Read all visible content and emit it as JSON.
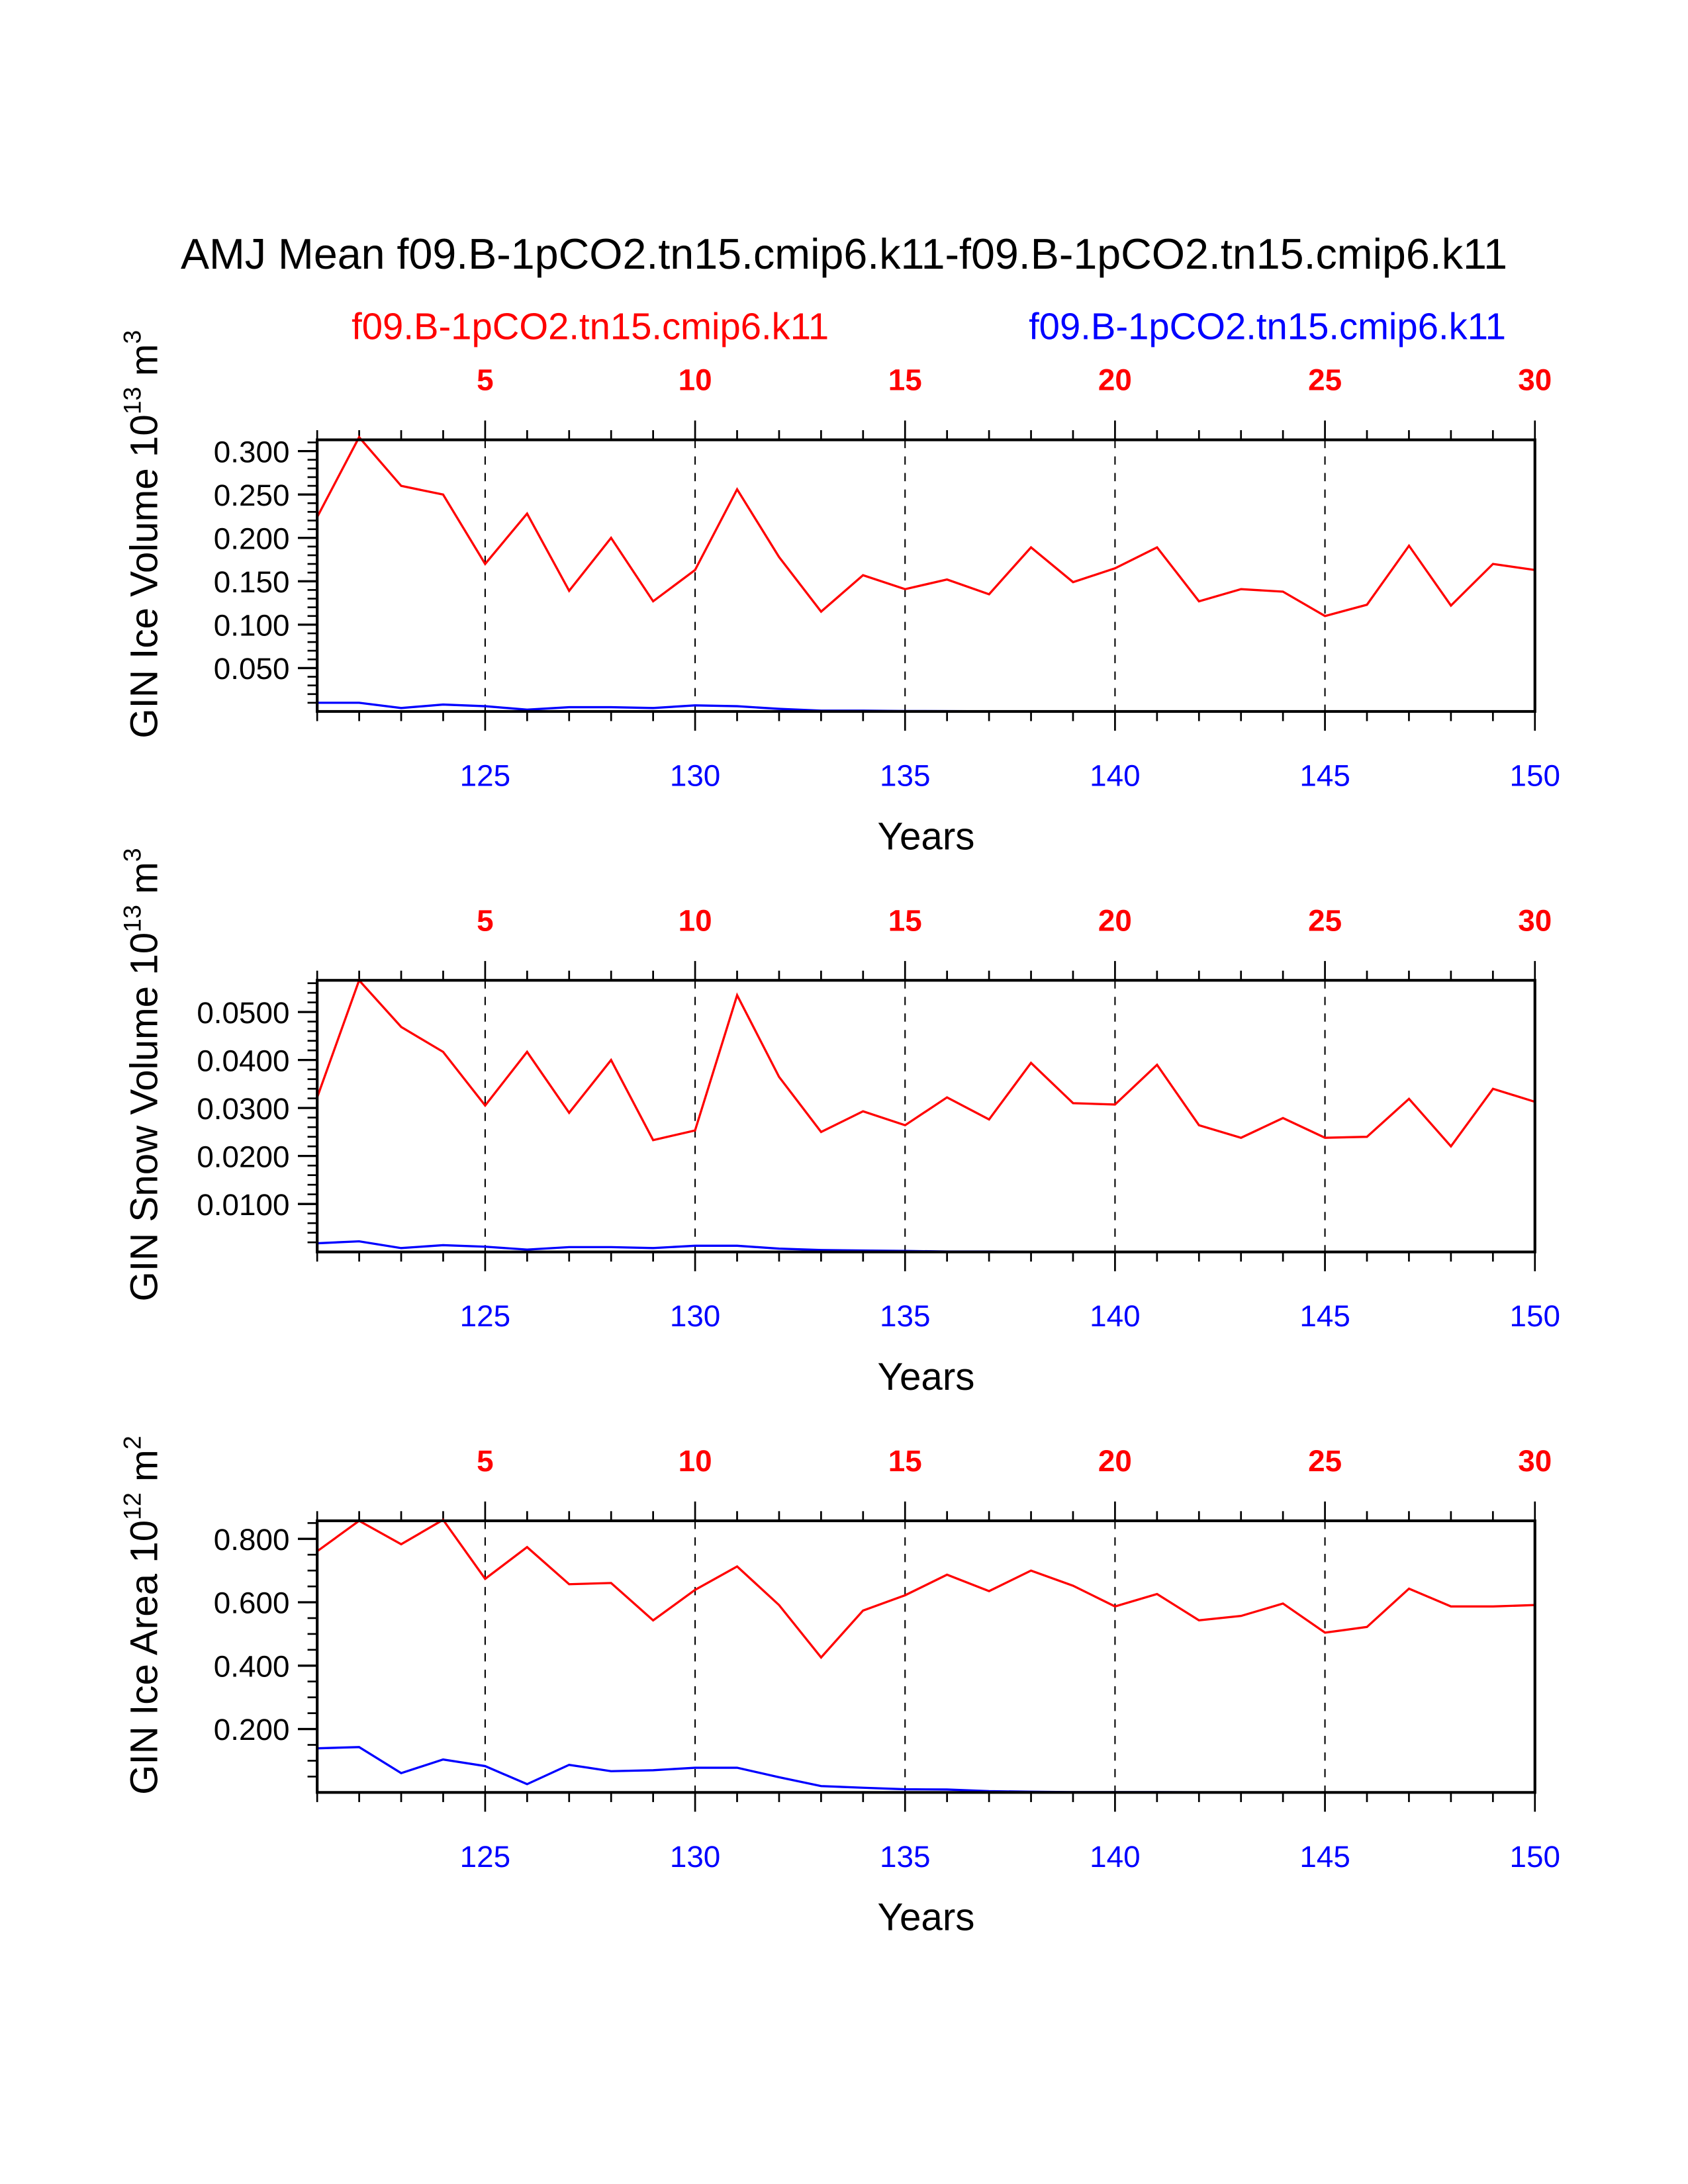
{
  "title": "AMJ Mean f09.B-1pCO2.tn15.cmip6.k11-f09.B-1pCO2.tn15.cmip6.k11",
  "legend": {
    "red_label": "f09.B-1pCO2.tn15.cmip6.k11",
    "blue_label": "f09.B-1pCO2.tn15.cmip6.k11"
  },
  "colors": {
    "red": "#ff0000",
    "blue": "#0000ff",
    "axis": "#000000"
  },
  "chart_data": [
    {
      "type": "line",
      "ylabel": {
        "main": "GIN Ice Volume 10",
        "exp": "13",
        "unit": " m",
        "unit_exp": "3"
      },
      "xlabel": "Years",
      "ylim": [
        0,
        0.313
      ],
      "yticks": [
        0.05,
        0.1,
        0.15,
        0.2,
        0.25,
        0.3
      ],
      "ytick_labels": [
        "0.050",
        "0.100",
        "0.150",
        "0.200",
        "0.250",
        "0.300"
      ],
      "yminor": 0.01,
      "top_ticks": [
        "5",
        "10",
        "15",
        "20",
        "25",
        "30"
      ],
      "bottom_ticks": [
        "125",
        "130",
        "135",
        "140",
        "145",
        "150"
      ],
      "x": [
        121,
        122,
        123,
        124,
        125,
        126,
        127,
        128,
        129,
        130,
        131,
        132,
        133,
        134,
        135,
        136,
        137,
        138,
        139,
        140,
        141,
        142,
        143,
        144,
        145,
        146,
        147,
        148,
        149,
        150
      ],
      "series": [
        {
          "name": "f09.B-1pCO2.tn15.cmip6.k11 (red)",
          "color": "red",
          "values": [
            0.224,
            0.316,
            0.26,
            0.25,
            0.17,
            0.228,
            0.139,
            0.2,
            0.127,
            0.163,
            0.256,
            0.178,
            0.115,
            0.157,
            0.141,
            0.152,
            0.135,
            0.189,
            0.149,
            0.165,
            0.189,
            0.127,
            0.141,
            0.138,
            0.11,
            0.123,
            0.191,
            0.122,
            0.17,
            0.163
          ]
        },
        {
          "name": "f09.B-1pCO2.tn15.cmip6.k11 (blue)",
          "color": "blue",
          "values": [
            0.01,
            0.01,
            0.004,
            0.008,
            0.006,
            0.002,
            0.005,
            0.005,
            0.004,
            0.007,
            0.006,
            0.003,
            0.001,
            0.001,
            0.0005,
            0.0003,
            0.0002,
            0.0001,
            0.0001,
            0,
            0,
            0,
            0,
            0,
            0,
            0,
            0,
            0,
            0,
            0
          ]
        }
      ]
    },
    {
      "type": "line",
      "ylabel": {
        "main": "GIN Snow Volume 10",
        "exp": "13",
        "unit": " m",
        "unit_exp": "3"
      },
      "xlabel": "Years",
      "ylim": [
        0,
        0.0566
      ],
      "yticks": [
        0.01,
        0.02,
        0.03,
        0.04,
        0.05
      ],
      "ytick_labels": [
        "0.0100",
        "0.0200",
        "0.0300",
        "0.0400",
        "0.0500"
      ],
      "yminor": 0.002,
      "top_ticks": [
        "5",
        "10",
        "15",
        "20",
        "25",
        "30"
      ],
      "bottom_ticks": [
        "125",
        "130",
        "135",
        "140",
        "145",
        "150"
      ],
      "x": [
        121,
        122,
        123,
        124,
        125,
        126,
        127,
        128,
        129,
        130,
        131,
        132,
        133,
        134,
        135,
        136,
        137,
        138,
        139,
        140,
        141,
        142,
        143,
        144,
        145,
        146,
        147,
        148,
        149,
        150
      ],
      "series": [
        {
          "name": "f09.B-1pCO2.tn15.cmip6.k11 (red)",
          "color": "red",
          "values": [
            0.0322,
            0.0566,
            0.0469,
            0.0417,
            0.0305,
            0.0417,
            0.029,
            0.04,
            0.0233,
            0.0253,
            0.0535,
            0.0365,
            0.025,
            0.0293,
            0.0264,
            0.0322,
            0.0276,
            0.0394,
            0.031,
            0.0307,
            0.039,
            0.0264,
            0.0238,
            0.0279,
            0.0238,
            0.024,
            0.0319,
            0.022,
            0.034,
            0.0313
          ]
        },
        {
          "name": "f09.B-1pCO2.tn15.cmip6.k11 (blue)",
          "color": "blue",
          "values": [
            0.0018,
            0.0022,
            0.0008,
            0.0014,
            0.0011,
            0.0005,
            0.001,
            0.001,
            0.0008,
            0.0013,
            0.0013,
            0.0007,
            0.0004,
            0.0003,
            0.0002,
            0.0001,
            0.0001,
            0,
            0,
            0,
            0,
            0,
            0,
            0,
            0,
            0,
            0,
            0,
            0,
            0
          ]
        }
      ]
    },
    {
      "type": "line",
      "ylabel": {
        "main": "GIN Ice Area 10",
        "exp": "12",
        "unit": " m",
        "unit_exp": "2"
      },
      "xlabel": "Years",
      "ylim": [
        0,
        0.857
      ],
      "yticks": [
        0.2,
        0.4,
        0.6,
        0.8
      ],
      "ytick_labels": [
        "0.200",
        "0.400",
        "0.600",
        "0.800"
      ],
      "yminor": 0.05,
      "top_ticks": [
        "5",
        "10",
        "15",
        "20",
        "25",
        "30"
      ],
      "bottom_ticks": [
        "125",
        "130",
        "135",
        "140",
        "145",
        "150"
      ],
      "x": [
        121,
        122,
        123,
        124,
        125,
        126,
        127,
        128,
        129,
        130,
        131,
        132,
        133,
        134,
        135,
        136,
        137,
        138,
        139,
        140,
        141,
        142,
        143,
        144,
        145,
        146,
        147,
        148,
        149,
        150
      ],
      "series": [
        {
          "name": "f09.B-1pCO2.tn15.cmip6.k11 (red)",
          "color": "red",
          "values": [
            0.761,
            0.857,
            0.783,
            0.86,
            0.674,
            0.774,
            0.657,
            0.661,
            0.543,
            0.639,
            0.713,
            0.591,
            0.426,
            0.574,
            0.622,
            0.687,
            0.635,
            0.7,
            0.652,
            0.587,
            0.626,
            0.543,
            0.557,
            0.596,
            0.504,
            0.522,
            0.643,
            0.587,
            0.587,
            0.591
          ]
        },
        {
          "name": "f09.B-1pCO2.tn15.cmip6.k11 (blue)",
          "color": "blue",
          "values": [
            0.139,
            0.143,
            0.061,
            0.104,
            0.083,
            0.026,
            0.087,
            0.067,
            0.07,
            0.078,
            0.078,
            0.048,
            0.02,
            0.015,
            0.01,
            0.009,
            0.004,
            0.002,
            0.001,
            0.001,
            0.001,
            0.0005,
            0,
            0,
            0,
            0,
            0,
            0,
            0,
            0
          ]
        }
      ]
    }
  ]
}
